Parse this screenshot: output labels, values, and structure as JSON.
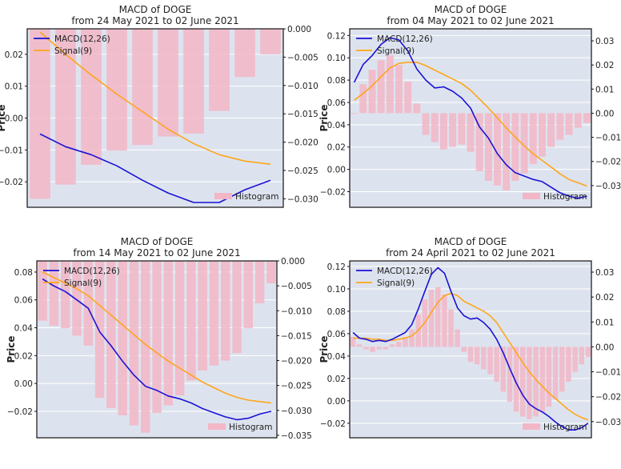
{
  "figure": {
    "colors": {
      "plot_bg": "#dde3ee",
      "grid": "#ffffff",
      "macd": "#1a12d6",
      "signal": "#ffa51a",
      "hist": "#f2b6c6",
      "frame": "#111111",
      "text": "#222222"
    }
  },
  "chart_data": [
    {
      "type": "line",
      "title": "MACD of DOGE",
      "subtitle": "from 24 May 2021 to 02 June 2021",
      "ylabel": "Price",
      "xlabel": "",
      "ylim": [
        -0.028,
        0.028
      ],
      "yticks": [
        0.02,
        0.01,
        0.0,
        -0.01,
        -0.02
      ],
      "yticklabels": [
        "0.02",
        "0.01",
        "0.00",
        "−0.01",
        "−0.02"
      ],
      "y2lim": [
        -0.0315,
        0.0
      ],
      "y2ticks": [
        0.0,
        -0.005,
        -0.01,
        -0.015,
        -0.02,
        -0.025,
        -0.03
      ],
      "y2ticklabels": [
        "0.000",
        "−0.005",
        "−0.010",
        "−0.015",
        "−0.020",
        "−0.025",
        "−0.030"
      ],
      "grid": true,
      "legend_position": "top-left",
      "series": [
        {
          "name": "MACD(12,26)",
          "values": [
            -0.005,
            -0.009,
            -0.0115,
            -0.015,
            -0.0195,
            -0.0235,
            -0.0265,
            -0.0265,
            -0.0225,
            -0.0195
          ]
        },
        {
          "name": "Signal(9)",
          "values": [
            0.027,
            0.02,
            0.0135,
            0.0075,
            0.002,
            -0.0035,
            -0.008,
            -0.0115,
            -0.0135,
            -0.0145
          ]
        },
        {
          "name": "Histogram",
          "values": [
            -0.03,
            -0.0275,
            -0.024,
            -0.0215,
            -0.0205,
            -0.019,
            -0.0185,
            -0.0145,
            -0.0085,
            -0.0045
          ]
        }
      ]
    },
    {
      "type": "line",
      "title": "MACD of DOGE",
      "subtitle": "from 04 May 2021 to 02 June 2021",
      "ylabel": "Price",
      "xlabel": "",
      "ylim": [
        -0.034,
        0.126
      ],
      "yticks": [
        0.12,
        0.1,
        0.08,
        0.06,
        0.04,
        0.02,
        0.0,
        -0.02
      ],
      "yticklabels": [
        "0.12",
        "0.10",
        "0.08",
        "0.06",
        "0.04",
        "0.02",
        "0.00",
        "−0.02"
      ],
      "y2lim": [
        -0.039,
        0.035
      ],
      "y2ticks": [
        0.03,
        0.02,
        0.01,
        0.0,
        -0.01,
        -0.02,
        -0.03
      ],
      "y2ticklabels": [
        "0.03",
        "0.02",
        "0.01",
        "0.00",
        "−0.01",
        "−0.02",
        "−0.03"
      ],
      "grid": true,
      "legend_position": "top-left",
      "series": [
        {
          "name": "MACD(12,26)",
          "values": [
            0.078,
            0.094,
            0.102,
            0.112,
            0.118,
            0.116,
            0.106,
            0.09,
            0.08,
            0.073,
            0.074,
            0.07,
            0.064,
            0.055,
            0.038,
            0.028,
            0.014,
            0.004,
            -0.003,
            -0.006,
            -0.009,
            -0.011,
            -0.016,
            -0.021,
            -0.024,
            -0.026,
            -0.024
          ]
        },
        {
          "name": "Signal(9)",
          "values": [
            0.062,
            0.068,
            0.075,
            0.083,
            0.091,
            0.095,
            0.096,
            0.096,
            0.093,
            0.089,
            0.085,
            0.081,
            0.077,
            0.071,
            0.063,
            0.055,
            0.046,
            0.037,
            0.029,
            0.021,
            0.014,
            0.008,
            0.002,
            -0.004,
            -0.009,
            -0.012,
            -0.015
          ]
        },
        {
          "name": "Histogram",
          "values": [
            0.0,
            0.012,
            0.018,
            0.022,
            0.024,
            0.02,
            0.013,
            0.004,
            -0.009,
            -0.012,
            -0.015,
            -0.014,
            -0.013,
            -0.016,
            -0.024,
            -0.028,
            -0.03,
            -0.032,
            -0.028,
            -0.025,
            -0.021,
            -0.018,
            -0.014,
            -0.011,
            -0.009,
            -0.006,
            -0.004
          ]
        }
      ]
    },
    {
      "type": "line",
      "title": "MACD of DOGE",
      "subtitle": "from 14 May 2021 to 02 June 2021",
      "ylabel": "Price",
      "xlabel": "",
      "ylim": [
        -0.039,
        0.088
      ],
      "yticks": [
        0.08,
        0.06,
        0.04,
        0.02,
        0.0,
        -0.02
      ],
      "yticklabels": [
        "0.08",
        "0.06",
        "0.04",
        "0.02",
        "0.00",
        "−0.02"
      ],
      "y2lim": [
        -0.0355,
        0.0
      ],
      "y2ticks": [
        0.0,
        -0.005,
        -0.01,
        -0.015,
        -0.02,
        -0.025,
        -0.03,
        -0.035
      ],
      "y2ticklabels": [
        "0.000",
        "−0.005",
        "−0.010",
        "−0.015",
        "−0.020",
        "−0.025",
        "−0.030",
        "−0.035"
      ],
      "grid": true,
      "legend_position": "top-left",
      "series": [
        {
          "name": "MACD(12,26)",
          "values": [
            0.075,
            0.07,
            0.066,
            0.06,
            0.054,
            0.037,
            0.027,
            0.016,
            0.006,
            -0.002,
            -0.005,
            -0.009,
            -0.011,
            -0.014,
            -0.018,
            -0.021,
            -0.024,
            -0.026,
            -0.025,
            -0.022,
            -0.02
          ]
        },
        {
          "name": "Signal(9)",
          "values": [
            0.08,
            0.076,
            0.072,
            0.068,
            0.063,
            0.056,
            0.049,
            0.042,
            0.035,
            0.028,
            0.022,
            0.016,
            0.011,
            0.006,
            0.001,
            -0.003,
            -0.007,
            -0.01,
            -0.012,
            -0.013,
            -0.014
          ]
        },
        {
          "name": "Histogram",
          "values": [
            -0.012,
            -0.013,
            -0.0135,
            -0.015,
            -0.017,
            -0.0275,
            -0.0295,
            -0.031,
            -0.033,
            -0.0345,
            -0.0305,
            -0.029,
            -0.027,
            -0.024,
            -0.022,
            -0.021,
            -0.02,
            -0.0185,
            -0.0135,
            -0.0085,
            -0.0045
          ]
        }
      ]
    },
    {
      "type": "line",
      "title": "MACD of DOGE",
      "subtitle": "from 24 April 2021 to 02 June 2021",
      "ylabel": "Price",
      "xlabel": "",
      "ylim": [
        -0.033,
        0.125
      ],
      "yticks": [
        0.12,
        0.1,
        0.08,
        0.06,
        0.04,
        0.02,
        0.0,
        -0.02
      ],
      "yticklabels": [
        "0.12",
        "0.10",
        "0.08",
        "0.06",
        "0.04",
        "0.02",
        "0.00",
        "−0.02"
      ],
      "y2lim": [
        -0.0365,
        0.0345
      ],
      "y2ticks": [
        0.03,
        0.02,
        0.01,
        0.0,
        -0.01,
        -0.02,
        -0.03
      ],
      "y2ticklabels": [
        "0.03",
        "0.02",
        "0.01",
        "0.00",
        "−0.01",
        "−0.02",
        "−0.03"
      ],
      "grid": true,
      "legend_position": "top-left",
      "series": [
        {
          "name": "MACD(12,26)",
          "values": [
            0.061,
            0.056,
            0.055,
            0.053,
            0.054,
            0.053,
            0.055,
            0.058,
            0.061,
            0.068,
            0.082,
            0.098,
            0.113,
            0.119,
            0.114,
            0.098,
            0.083,
            0.076,
            0.073,
            0.074,
            0.07,
            0.064,
            0.055,
            0.043,
            0.029,
            0.016,
            0.005,
            -0.003,
            -0.007,
            -0.01,
            -0.014,
            -0.019,
            -0.023,
            -0.026,
            -0.026,
            -0.024,
            -0.02
          ]
        },
        {
          "name": "Signal(9)",
          "values": [
            0.056,
            0.056,
            0.056,
            0.055,
            0.055,
            0.054,
            0.054,
            0.055,
            0.056,
            0.058,
            0.063,
            0.07,
            0.079,
            0.088,
            0.094,
            0.096,
            0.094,
            0.089,
            0.086,
            0.083,
            0.08,
            0.076,
            0.07,
            0.061,
            0.052,
            0.043,
            0.034,
            0.026,
            0.019,
            0.013,
            0.007,
            0.002,
            -0.003,
            -0.008,
            -0.012,
            -0.015,
            -0.017
          ]
        },
        {
          "name": "Histogram",
          "values": [
            0.004,
            0.001,
            -0.001,
            -0.002,
            -0.001,
            -0.001,
            0.001,
            0.002,
            0.004,
            0.007,
            0.013,
            0.019,
            0.023,
            0.024,
            0.021,
            0.015,
            0.007,
            -0.002,
            -0.006,
            -0.007,
            -0.009,
            -0.011,
            -0.014,
            -0.018,
            -0.022,
            -0.026,
            -0.028,
            -0.029,
            -0.028,
            -0.026,
            -0.024,
            -0.021,
            -0.018,
            -0.014,
            -0.01,
            -0.007,
            -0.004
          ]
        }
      ]
    }
  ]
}
